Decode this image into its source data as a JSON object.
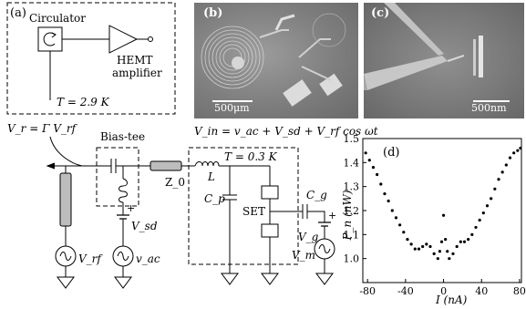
{
  "panel_a": {
    "label": "(a)",
    "circulator": "Circulator",
    "hemt": [
      "HEMT",
      "amplifier"
    ],
    "temp_top": "T = 2.9 K",
    "vr_eq": "V_r = Γ V_rf",
    "bias_tee": "Bias-tee",
    "vin_eq": "V_in = v_ac + V_sd + V_rf cos ωt",
    "temp_low": "T = 0.3 K",
    "z0": "Z_0",
    "inductor": "L",
    "cap_p": "C_p",
    "set": "SET",
    "cap_g": "C_g",
    "v_sd": "V_sd",
    "v_g": "V_g",
    "v_m": "V_m",
    "v_rf": "V_rf",
    "v_ac": "v_ac",
    "plus": "+",
    "minus": "−"
  },
  "panel_b": {
    "label": "(b)",
    "scale": "500μm"
  },
  "panel_c": {
    "label": "(c)",
    "scale": "500nm"
  },
  "chart_data": {
    "type": "scatter",
    "label": "(d)",
    "xlabel": "I (nA)",
    "ylabel": "P_n (nW)",
    "xlim": [
      -85,
      82
    ],
    "ylim": [
      0.9,
      1.5
    ],
    "xticks": [
      -80,
      -40,
      0,
      40,
      80
    ],
    "yticks": [
      1.0,
      1.1,
      1.2,
      1.3,
      1.4,
      1.5
    ],
    "ytick_labels": [
      "1.0",
      "1.1",
      "1.2",
      "1.3",
      "1.4",
      "1.5"
    ],
    "series": [
      {
        "x": [
          -82,
          -78,
          -74,
          -70,
          -66,
          -62,
          -58,
          -54,
          -50,
          -46,
          -42,
          -38,
          -34,
          -30,
          -26,
          -22,
          -18,
          -14,
          -10,
          -6,
          -4,
          -2,
          0,
          2,
          4,
          6,
          10,
          14,
          18,
          22,
          26,
          30,
          34,
          38,
          42,
          46,
          50,
          54,
          58,
          62,
          66,
          70,
          74,
          78,
          81
        ],
        "y": [
          1.44,
          1.41,
          1.38,
          1.35,
          1.31,
          1.27,
          1.24,
          1.2,
          1.17,
          1.14,
          1.11,
          1.08,
          1.06,
          1.04,
          1.04,
          1.05,
          1.06,
          1.05,
          1.02,
          1.0,
          1.03,
          1.07,
          1.18,
          1.08,
          1.03,
          1.0,
          1.02,
          1.05,
          1.07,
          1.07,
          1.08,
          1.1,
          1.13,
          1.16,
          1.19,
          1.22,
          1.25,
          1.29,
          1.33,
          1.36,
          1.39,
          1.42,
          1.44,
          1.45,
          1.46
        ]
      }
    ]
  }
}
